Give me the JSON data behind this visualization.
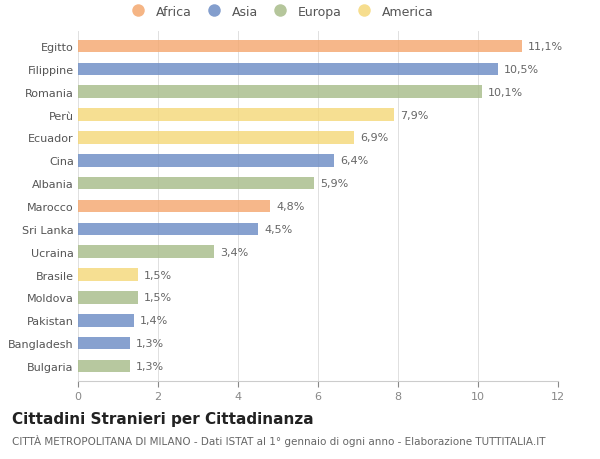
{
  "countries": [
    "Egitto",
    "Filippine",
    "Romania",
    "Perù",
    "Ecuador",
    "Cina",
    "Albania",
    "Marocco",
    "Sri Lanka",
    "Ucraina",
    "Brasile",
    "Moldova",
    "Pakistan",
    "Bangladesh",
    "Bulgaria"
  ],
  "values": [
    11.1,
    10.5,
    10.1,
    7.9,
    6.9,
    6.4,
    5.9,
    4.8,
    4.5,
    3.4,
    1.5,
    1.5,
    1.4,
    1.3,
    1.3
  ],
  "continents": [
    "Africa",
    "Asia",
    "Europa",
    "America",
    "America",
    "Asia",
    "Europa",
    "Africa",
    "Asia",
    "Europa",
    "America",
    "Europa",
    "Asia",
    "Asia",
    "Europa"
  ],
  "colors": {
    "Africa": "#F4A870",
    "Asia": "#6D8DC5",
    "Europa": "#A8BC8A",
    "America": "#F5D87A"
  },
  "legend_order": [
    "Africa",
    "Asia",
    "Europa",
    "America"
  ],
  "title": "Cittadini Stranieri per Cittadinanza",
  "subtitle": "CITTÀ METROPOLITANA DI MILANO - Dati ISTAT al 1° gennaio di ogni anno - Elaborazione TUTTITALIA.IT",
  "xlim": [
    0,
    12
  ],
  "xticks": [
    0,
    2,
    4,
    6,
    8,
    10,
    12
  ],
  "background_color": "#ffffff",
  "bar_height": 0.55,
  "title_fontsize": 11,
  "subtitle_fontsize": 7.5,
  "label_fontsize": 8,
  "tick_fontsize": 8,
  "legend_fontsize": 9
}
